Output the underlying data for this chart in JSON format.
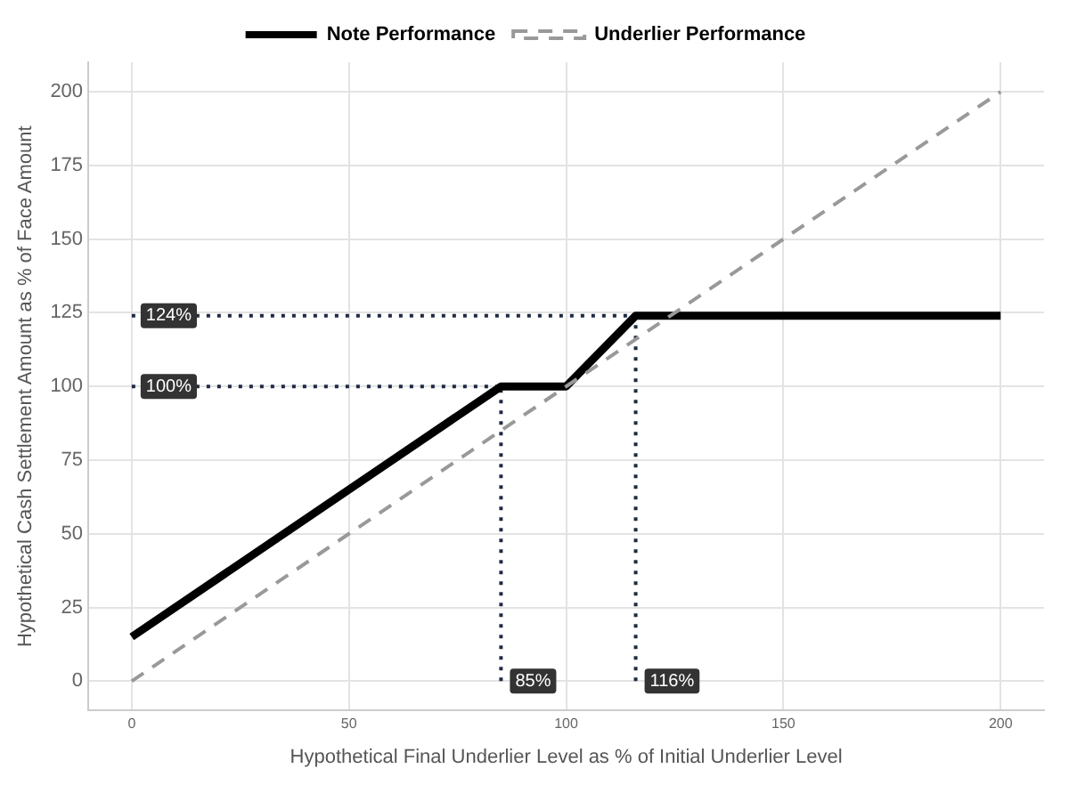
{
  "chart_data": {
    "type": "line",
    "xlabel": "Hypothetical Final Underlier Level as % of Initial Underlier Level",
    "ylabel": "Hypothetical Cash Settlement Amount as % of Face Amount",
    "xlim": [
      -10,
      210
    ],
    "xticks": [
      0,
      50,
      100,
      150,
      200
    ],
    "ylim": [
      -10,
      210
    ],
    "yticks": [
      0,
      25,
      50,
      75,
      100,
      125,
      150,
      175,
      200
    ],
    "grid": true,
    "legend": "top",
    "marker": "none",
    "series": [
      {
        "name": "Note Performance",
        "color": "#000000",
        "x": [
          0,
          85,
          100,
          116,
          200
        ],
        "values": [
          15,
          100,
          100,
          124,
          124
        ],
        "line_style": "solid"
      },
      {
        "name": "Underlier Performance",
        "color": "#999999",
        "x": [
          0,
          200
        ],
        "values": [
          0,
          200
        ],
        "line_style": "dashed"
      },
      {
        "color": "#1f2a44",
        "x": [
          0,
          116
        ],
        "values": [
          124,
          124
        ],
        "line_style": "dotted"
      },
      {
        "color": "#1f2a44",
        "x": [
          0,
          85
        ],
        "values": [
          100,
          100
        ],
        "line_style": "dotted"
      },
      {
        "color": "#1f2a44",
        "x": [
          85,
          85
        ],
        "values": [
          0,
          100
        ],
        "line_style": "dotted"
      },
      {
        "color": "#1f2a44",
        "x": [
          116,
          116
        ],
        "values": [
          0,
          124
        ],
        "line_style": "dotted"
      }
    ],
    "annotations": [
      {
        "text": "124%",
        "x": 0,
        "y": 124
      },
      {
        "text": "100%",
        "x": 0,
        "y": 100
      },
      {
        "text": "85%",
        "x": 85,
        "y": 0
      },
      {
        "text": "116%",
        "x": 116,
        "y": 0
      }
    ]
  }
}
